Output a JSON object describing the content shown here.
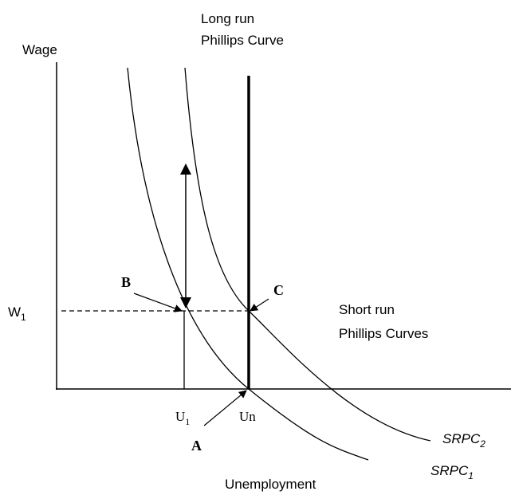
{
  "axes": {
    "y_label": "Wage",
    "x_label": "Unemployment"
  },
  "lrpc": {
    "line1": "Long run",
    "line2": "Phillips Curve"
  },
  "srpc_label": {
    "line1": "Short run",
    "line2": "Phillips Curves"
  },
  "wage_level": {
    "main": "W",
    "sub": "1"
  },
  "unemployment_levels": [
    {
      "main": "U",
      "sub": "1"
    },
    {
      "main": "Un"
    }
  ],
  "curves": [
    {
      "main": "SRPC",
      "sub": "1"
    },
    {
      "main": "SRPC",
      "sub": "2"
    }
  ],
  "points": [
    "A",
    "B",
    "C"
  ]
}
